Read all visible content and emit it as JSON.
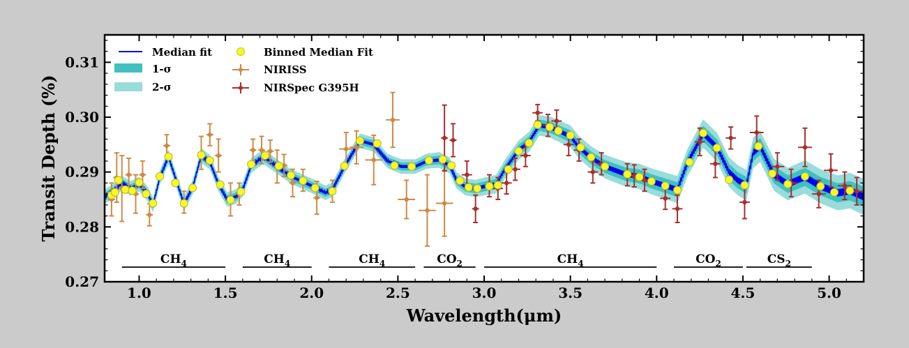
{
  "chart_data": {
    "type": "line",
    "xlabel": "Wavelength(μm)",
    "ylabel": "Transit Depth (%)",
    "xlim": [
      0.8,
      5.2
    ],
    "ylim": [
      0.27,
      0.315
    ],
    "xticks": [
      {
        "v": 1.0,
        "label": "1.0"
      },
      {
        "v": 1.5,
        "label": "1.5"
      },
      {
        "v": 2.0,
        "label": "2.0"
      },
      {
        "v": 2.5,
        "label": "2.5"
      },
      {
        "v": 3.0,
        "label": "3.0"
      },
      {
        "v": 3.5,
        "label": "3.5"
      },
      {
        "v": 4.0,
        "label": "4.0"
      },
      {
        "v": 4.5,
        "label": "4.5"
      },
      {
        "v": 5.0,
        "label": "5.0"
      }
    ],
    "yticks": [
      {
        "v": 0.27,
        "label": "0.27"
      },
      {
        "v": 0.28,
        "label": "0.28"
      },
      {
        "v": 0.29,
        "label": "0.29"
      },
      {
        "v": 0.3,
        "label": "0.30"
      },
      {
        "v": 0.31,
        "label": "0.31"
      }
    ],
    "grid": false,
    "legend_position": "top-left",
    "colors": {
      "median": "#0000ee",
      "sigma1": "#40c0c0",
      "sigma2": "#98dcdc",
      "binned": "#f7f72a",
      "niriss": "#cd8a45",
      "nirspec": "#a5302e"
    },
    "legend": {
      "median": "Median fit",
      "sigma1": "1-σ",
      "sigma2": "2-σ",
      "binned": "Binned Median Fit",
      "niriss": "NIRISS",
      "nirspec": "NIRSpec G395H"
    },
    "median_fit": [
      [
        0.8,
        0.2855
      ],
      [
        0.85,
        0.2865
      ],
      [
        0.9,
        0.288
      ],
      [
        0.95,
        0.287
      ],
      [
        1.0,
        0.2878
      ],
      [
        1.05,
        0.286
      ],
      [
        1.08,
        0.284
      ],
      [
        1.12,
        0.289
      ],
      [
        1.17,
        0.2928
      ],
      [
        1.22,
        0.288
      ],
      [
        1.26,
        0.2842
      ],
      [
        1.31,
        0.2872
      ],
      [
        1.36,
        0.293
      ],
      [
        1.41,
        0.2918
      ],
      [
        1.46,
        0.2878
      ],
      [
        1.51,
        0.285
      ],
      [
        1.56,
        0.2855
      ],
      [
        1.6,
        0.2868
      ],
      [
        1.65,
        0.2912
      ],
      [
        1.72,
        0.2928
      ],
      [
        1.8,
        0.291
      ],
      [
        1.88,
        0.2892
      ],
      [
        1.95,
        0.2882
      ],
      [
        2.02,
        0.2872
      ],
      [
        2.08,
        0.2862
      ],
      [
        2.12,
        0.2868
      ],
      [
        2.19,
        0.291
      ],
      [
        2.28,
        0.2957
      ],
      [
        2.36,
        0.295
      ],
      [
        2.44,
        0.292
      ],
      [
        2.52,
        0.291
      ],
      [
        2.6,
        0.291
      ],
      [
        2.67,
        0.292
      ],
      [
        2.74,
        0.2922
      ],
      [
        2.8,
        0.2912
      ],
      [
        2.84,
        0.2885
      ],
      [
        2.89,
        0.2873
      ],
      [
        2.95,
        0.287
      ],
      [
        3.02,
        0.2875
      ],
      [
        3.07,
        0.2878
      ],
      [
        3.12,
        0.2905
      ],
      [
        3.2,
        0.294
      ],
      [
        3.26,
        0.2955
      ],
      [
        3.32,
        0.2985
      ],
      [
        3.38,
        0.2982
      ],
      [
        3.43,
        0.2975
      ],
      [
        3.5,
        0.2965
      ],
      [
        3.55,
        0.2945
      ],
      [
        3.62,
        0.2926
      ],
      [
        3.7,
        0.291
      ],
      [
        3.82,
        0.2896
      ],
      [
        3.9,
        0.2892
      ],
      [
        3.97,
        0.2883
      ],
      [
        4.05,
        0.2875
      ],
      [
        4.12,
        0.2868
      ],
      [
        4.18,
        0.2918
      ],
      [
        4.27,
        0.297
      ],
      [
        4.35,
        0.2945
      ],
      [
        4.42,
        0.29
      ],
      [
        4.47,
        0.2885
      ],
      [
        4.52,
        0.2876
      ],
      [
        4.56,
        0.2935
      ],
      [
        4.6,
        0.2947
      ],
      [
        4.68,
        0.2895
      ],
      [
        4.76,
        0.2878
      ],
      [
        4.86,
        0.2891
      ],
      [
        4.95,
        0.2874
      ],
      [
        5.05,
        0.2862
      ],
      [
        5.12,
        0.2866
      ],
      [
        5.2,
        0.2855
      ]
    ],
    "binned_median_fit": [
      [
        0.84,
        0.2858
      ],
      [
        0.86,
        0.2863
      ],
      [
        0.88,
        0.2885
      ],
      [
        0.92,
        0.2868
      ],
      [
        0.96,
        0.2866
      ],
      [
        1.0,
        0.2881
      ],
      [
        1.04,
        0.286
      ],
      [
        1.08,
        0.2843
      ],
      [
        1.12,
        0.2892
      ],
      [
        1.17,
        0.2928
      ],
      [
        1.21,
        0.288
      ],
      [
        1.26,
        0.2843
      ],
      [
        1.31,
        0.2871
      ],
      [
        1.36,
        0.2931
      ],
      [
        1.41,
        0.2921
      ],
      [
        1.47,
        0.2877
      ],
      [
        1.53,
        0.2849
      ],
      [
        1.59,
        0.2864
      ],
      [
        1.65,
        0.2914
      ],
      [
        1.73,
        0.293
      ],
      [
        1.81,
        0.2911
      ],
      [
        1.88,
        0.2894
      ],
      [
        1.95,
        0.2884
      ],
      [
        2.02,
        0.2871
      ],
      [
        2.12,
        0.2865
      ],
      [
        2.19,
        0.2911
      ],
      [
        2.28,
        0.2957
      ],
      [
        2.38,
        0.2952
      ],
      [
        2.48,
        0.2912
      ],
      [
        2.58,
        0.291
      ],
      [
        2.68,
        0.2921
      ],
      [
        2.76,
        0.2923
      ],
      [
        2.81,
        0.2912
      ],
      [
        2.86,
        0.2884
      ],
      [
        2.91,
        0.2872
      ],
      [
        2.96,
        0.287
      ],
      [
        3.03,
        0.2874
      ],
      [
        3.08,
        0.2876
      ],
      [
        3.14,
        0.2905
      ],
      [
        3.2,
        0.2938
      ],
      [
        3.26,
        0.2953
      ],
      [
        3.31,
        0.2986
      ],
      [
        3.38,
        0.2982
      ],
      [
        3.43,
        0.2975
      ],
      [
        3.5,
        0.2967
      ],
      [
        3.56,
        0.2945
      ],
      [
        3.62,
        0.2927
      ],
      [
        3.7,
        0.291
      ],
      [
        3.83,
        0.2896
      ],
      [
        3.9,
        0.2891
      ],
      [
        3.97,
        0.2883
      ],
      [
        4.05,
        0.2875
      ],
      [
        4.12,
        0.2867
      ],
      [
        4.19,
        0.2918
      ],
      [
        4.27,
        0.2971
      ],
      [
        4.35,
        0.2944
      ],
      [
        4.42,
        0.2886
      ],
      [
        4.51,
        0.2876
      ],
      [
        4.59,
        0.2947
      ],
      [
        4.67,
        0.2897
      ],
      [
        4.76,
        0.2878
      ],
      [
        4.86,
        0.2892
      ],
      [
        4.95,
        0.2874
      ],
      [
        5.03,
        0.2863
      ],
      [
        5.12,
        0.2866
      ]
    ],
    "niriss": [
      {
        "x": 0.84,
        "y": 0.285,
        "xerr": 0.02,
        "yerr": 0.003
      },
      {
        "x": 0.87,
        "y": 0.289,
        "xerr": 0.02,
        "yerr": 0.0045
      },
      {
        "x": 0.9,
        "y": 0.287,
        "xerr": 0.02,
        "yerr": 0.006
      },
      {
        "x": 0.94,
        "y": 0.2895,
        "xerr": 0.02,
        "yerr": 0.003
      },
      {
        "x": 0.98,
        "y": 0.286,
        "xerr": 0.02,
        "yerr": 0.0035
      },
      {
        "x": 1.02,
        "y": 0.2895,
        "xerr": 0.02,
        "yerr": 0.0025
      },
      {
        "x": 1.06,
        "y": 0.2822,
        "xerr": 0.02,
        "yerr": 0.002
      },
      {
        "x": 1.16,
        "y": 0.2948,
        "xerr": 0.02,
        "yerr": 0.002
      },
      {
        "x": 1.26,
        "y": 0.2845,
        "xerr": 0.02,
        "yerr": 0.002
      },
      {
        "x": 1.36,
        "y": 0.2935,
        "xerr": 0.02,
        "yerr": 0.003
      },
      {
        "x": 1.41,
        "y": 0.2968,
        "xerr": 0.02,
        "yerr": 0.002
      },
      {
        "x": 1.46,
        "y": 0.293,
        "xerr": 0.02,
        "yerr": 0.003
      },
      {
        "x": 1.53,
        "y": 0.285,
        "xerr": 0.02,
        "yerr": 0.003
      },
      {
        "x": 1.58,
        "y": 0.286,
        "xerr": 0.02,
        "yerr": 0.002
      },
      {
        "x": 1.66,
        "y": 0.294,
        "xerr": 0.02,
        "yerr": 0.002
      },
      {
        "x": 1.71,
        "y": 0.294,
        "xerr": 0.02,
        "yerr": 0.0025
      },
      {
        "x": 1.76,
        "y": 0.2938,
        "xerr": 0.02,
        "yerr": 0.002
      },
      {
        "x": 1.8,
        "y": 0.291,
        "xerr": 0.02,
        "yerr": 0.003
      },
      {
        "x": 1.84,
        "y": 0.2912,
        "xerr": 0.02,
        "yerr": 0.002
      },
      {
        "x": 1.89,
        "y": 0.288,
        "xerr": 0.02,
        "yerr": 0.0025
      },
      {
        "x": 1.95,
        "y": 0.2885,
        "xerr": 0.02,
        "yerr": 0.002
      },
      {
        "x": 2.03,
        "y": 0.2853,
        "xerr": 0.02,
        "yerr": 0.003
      },
      {
        "x": 2.12,
        "y": 0.2865,
        "xerr": 0.02,
        "yerr": 0.002
      },
      {
        "x": 2.2,
        "y": 0.2942,
        "xerr": 0.04,
        "yerr": 0.003
      },
      {
        "x": 2.26,
        "y": 0.2945,
        "xerr": 0.04,
        "yerr": 0.003
      },
      {
        "x": 2.36,
        "y": 0.2922,
        "xerr": 0.05,
        "yerr": 0.0045
      },
      {
        "x": 2.47,
        "y": 0.2995,
        "xerr": 0.04,
        "yerr": 0.005
      },
      {
        "x": 2.55,
        "y": 0.285,
        "xerr": 0.05,
        "yerr": 0.0035
      },
      {
        "x": 2.67,
        "y": 0.283,
        "xerr": 0.05,
        "yerr": 0.0065
      },
      {
        "x": 2.77,
        "y": 0.2843,
        "xerr": 0.05,
        "yerr": 0.006
      }
    ],
    "nirspec": [
      {
        "x": 2.77,
        "y": 0.2962,
        "xerr": 0.02,
        "yerr": 0.006
      },
      {
        "x": 2.82,
        "y": 0.2958,
        "xerr": 0.02,
        "yerr": 0.003
      },
      {
        "x": 2.9,
        "y": 0.2895,
        "xerr": 0.03,
        "yerr": 0.0025
      },
      {
        "x": 2.95,
        "y": 0.2833,
        "xerr": 0.02,
        "yerr": 0.0025
      },
      {
        "x": 3.03,
        "y": 0.2875,
        "xerr": 0.03,
        "yerr": 0.002
      },
      {
        "x": 3.08,
        "y": 0.287,
        "xerr": 0.03,
        "yerr": 0.002
      },
      {
        "x": 3.13,
        "y": 0.288,
        "xerr": 0.03,
        "yerr": 0.002
      },
      {
        "x": 3.18,
        "y": 0.2905,
        "xerr": 0.03,
        "yerr": 0.002
      },
      {
        "x": 3.24,
        "y": 0.293,
        "xerr": 0.03,
        "yerr": 0.002
      },
      {
        "x": 3.31,
        "y": 0.3008,
        "xerr": 0.03,
        "yerr": 0.0015
      },
      {
        "x": 3.37,
        "y": 0.2985,
        "xerr": 0.03,
        "yerr": 0.002
      },
      {
        "x": 3.42,
        "y": 0.2993,
        "xerr": 0.03,
        "yerr": 0.002
      },
      {
        "x": 3.49,
        "y": 0.295,
        "xerr": 0.03,
        "yerr": 0.002
      },
      {
        "x": 3.55,
        "y": 0.294,
        "xerr": 0.03,
        "yerr": 0.002
      },
      {
        "x": 3.63,
        "y": 0.29,
        "xerr": 0.03,
        "yerr": 0.002
      },
      {
        "x": 3.68,
        "y": 0.2915,
        "xerr": 0.03,
        "yerr": 0.002
      },
      {
        "x": 3.83,
        "y": 0.2895,
        "xerr": 0.03,
        "yerr": 0.002
      },
      {
        "x": 3.87,
        "y": 0.2893,
        "xerr": 0.03,
        "yerr": 0.002
      },
      {
        "x": 3.93,
        "y": 0.2885,
        "xerr": 0.03,
        "yerr": 0.002
      },
      {
        "x": 4.05,
        "y": 0.2852,
        "xerr": 0.03,
        "yerr": 0.002
      },
      {
        "x": 4.12,
        "y": 0.2833,
        "xerr": 0.03,
        "yerr": 0.0025
      },
      {
        "x": 4.25,
        "y": 0.2955,
        "xerr": 0.03,
        "yerr": 0.0025
      },
      {
        "x": 4.34,
        "y": 0.2915,
        "xerr": 0.03,
        "yerr": 0.0025
      },
      {
        "x": 4.43,
        "y": 0.2962,
        "xerr": 0.03,
        "yerr": 0.002
      },
      {
        "x": 4.51,
        "y": 0.2845,
        "xerr": 0.03,
        "yerr": 0.003
      },
      {
        "x": 4.58,
        "y": 0.2972,
        "xerr": 0.04,
        "yerr": 0.003
      },
      {
        "x": 4.7,
        "y": 0.291,
        "xerr": 0.04,
        "yerr": 0.0025
      },
      {
        "x": 4.78,
        "y": 0.288,
        "xerr": 0.04,
        "yerr": 0.0025
      },
      {
        "x": 4.86,
        "y": 0.2945,
        "xerr": 0.04,
        "yerr": 0.0035
      },
      {
        "x": 4.94,
        "y": 0.286,
        "xerr": 0.04,
        "yerr": 0.0025
      },
      {
        "x": 5.01,
        "y": 0.2903,
        "xerr": 0.04,
        "yerr": 0.003
      },
      {
        "x": 5.09,
        "y": 0.2875,
        "xerr": 0.04,
        "yerr": 0.0025
      },
      {
        "x": 5.16,
        "y": 0.2865,
        "xerr": 0.04,
        "yerr": 0.0025
      }
    ],
    "annotations": [
      {
        "x0": 0.9,
        "x1": 1.5,
        "species": "CH",
        "sub": "4"
      },
      {
        "x0": 1.6,
        "x1": 2.0,
        "species": "CH",
        "sub": "4"
      },
      {
        "x0": 2.1,
        "x1": 2.6,
        "species": "CH",
        "sub": "4"
      },
      {
        "x0": 2.65,
        "x1": 2.95,
        "species": "CO",
        "sub": "2"
      },
      {
        "x0": 3.0,
        "x1": 4.0,
        "species": "CH",
        "sub": "4"
      },
      {
        "x0": 4.1,
        "x1": 4.5,
        "species": "CO",
        "sub": "2"
      },
      {
        "x0": 4.52,
        "x1": 4.9,
        "species": "CS",
        "sub": "2"
      }
    ]
  }
}
